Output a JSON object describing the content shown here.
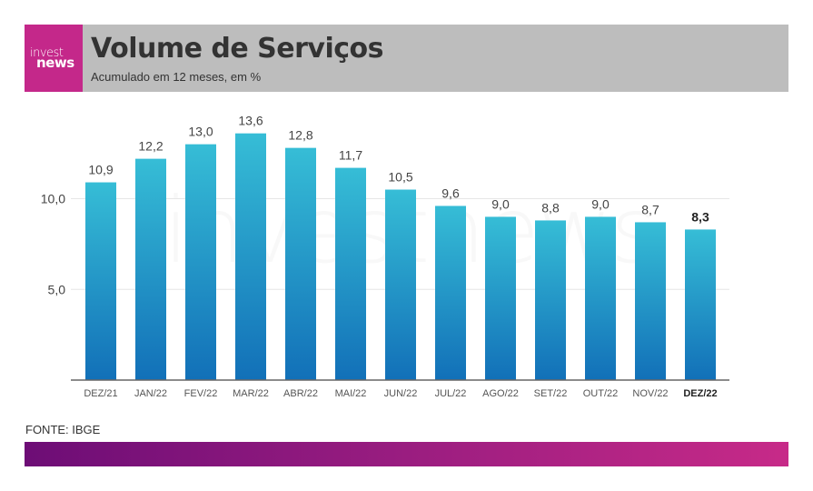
{
  "header": {
    "logo_line1": "invest",
    "logo_line2": "news",
    "title": "Volume de Serviços",
    "subtitle": "Acumulado em 12 meses, em %"
  },
  "watermark": "investnews",
  "source": "FONTE: IBGE",
  "colors": {
    "bar_top": "#36bdd6",
    "bar_bottom": "#1270b8",
    "header_bg": "#bdbdbd",
    "logo_bg": "#c4288a",
    "footer_start": "#6d0d76",
    "footer_end": "#c72a88"
  },
  "chart_data": {
    "type": "bar",
    "title": "Volume de Serviços",
    "subtitle": "Acumulado em 12 meses, em %",
    "xlabel": "",
    "ylabel": "",
    "categories": [
      "DEZ/21",
      "JAN/22",
      "FEV/22",
      "MAR/22",
      "ABR/22",
      "MAI/22",
      "JUN/22",
      "JUL/22",
      "AGO/22",
      "SET/22",
      "OUT/22",
      "NOV/22",
      "DEZ/22"
    ],
    "values": [
      10.9,
      12.2,
      13.0,
      13.6,
      12.8,
      11.7,
      10.5,
      9.6,
      9.0,
      8.8,
      9.0,
      8.7,
      8.3
    ],
    "value_labels": [
      "10,9",
      "12,2",
      "13,0",
      "13,6",
      "12,8",
      "11,7",
      "10,5",
      "9,6",
      "9,0",
      "8,8",
      "9,0",
      "8,7",
      "8,3"
    ],
    "highlighted_index": 12,
    "yticks": [
      5.0,
      10.0
    ],
    "ytick_labels": [
      "5,0",
      "10,0"
    ],
    "ylim": [
      0,
      14
    ],
    "grid": true,
    "legend": "none"
  }
}
